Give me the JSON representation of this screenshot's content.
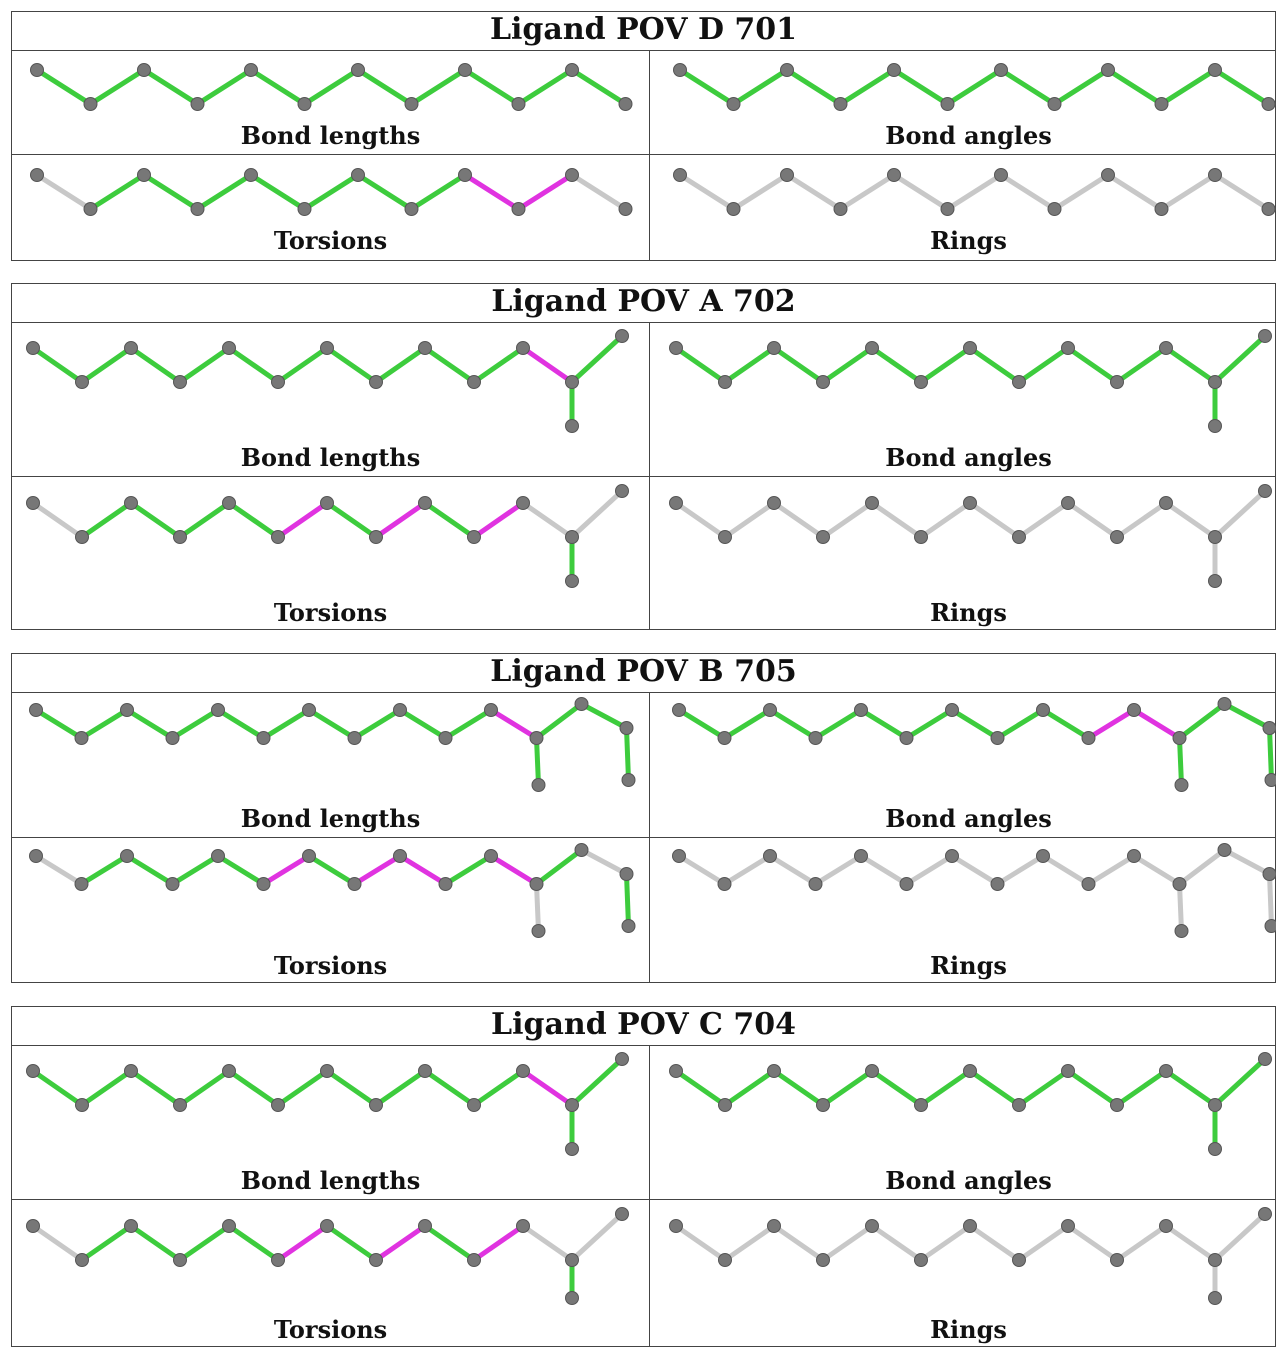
{
  "colors": {
    "ok": "#3dcc3d",
    "flag": "#e033e0",
    "none": "#c8c8c8",
    "atom": "#777777"
  },
  "ligands": [
    {
      "title": "Ligand POV D 701",
      "shape": "chain",
      "panels": [
        {
          "label": "Bond lengths",
          "flag": [],
          "gray": []
        },
        {
          "label": "Bond angles",
          "flag": [],
          "gray": []
        },
        {
          "label": "Torsions",
          "flag": [
            8,
            9
          ],
          "gray": [
            0,
            10
          ]
        },
        {
          "label": "Rings",
          "flag": [],
          "gray": "all"
        }
      ]
    },
    {
      "title": "Ligand POV A 702",
      "shape": "branch1",
      "panels": [
        {
          "label": "Bond lengths",
          "flag": [
            10
          ],
          "gray": []
        },
        {
          "label": "Bond angles",
          "flag": [],
          "gray": []
        },
        {
          "label": "Torsions",
          "flag": [
            5,
            7,
            9
          ],
          "gray": [
            0,
            10,
            11
          ]
        },
        {
          "label": "Rings",
          "flag": [],
          "gray": "all"
        }
      ]
    },
    {
      "title": "Ligand POV B 705",
      "shape": "branch2",
      "panels": [
        {
          "label": "Bond lengths",
          "flag": [
            10
          ],
          "gray": []
        },
        {
          "label": "Bond angles",
          "flag": [
            9,
            10
          ],
          "gray": []
        },
        {
          "label": "Torsions",
          "flag": [
            5,
            7,
            8,
            10
          ],
          "gray": [
            0,
            12,
            13
          ]
        },
        {
          "label": "Rings",
          "flag": [],
          "gray": "all"
        }
      ]
    },
    {
      "title": "Ligand POV C 704",
      "shape": "branch1",
      "panels": [
        {
          "label": "Bond lengths",
          "flag": [
            10
          ],
          "gray": []
        },
        {
          "label": "Bond angles",
          "flag": [],
          "gray": []
        },
        {
          "label": "Torsions",
          "flag": [
            5,
            7,
            9
          ],
          "gray": [
            0,
            10,
            11
          ]
        },
        {
          "label": "Rings",
          "flag": [],
          "gray": "all"
        }
      ]
    }
  ]
}
